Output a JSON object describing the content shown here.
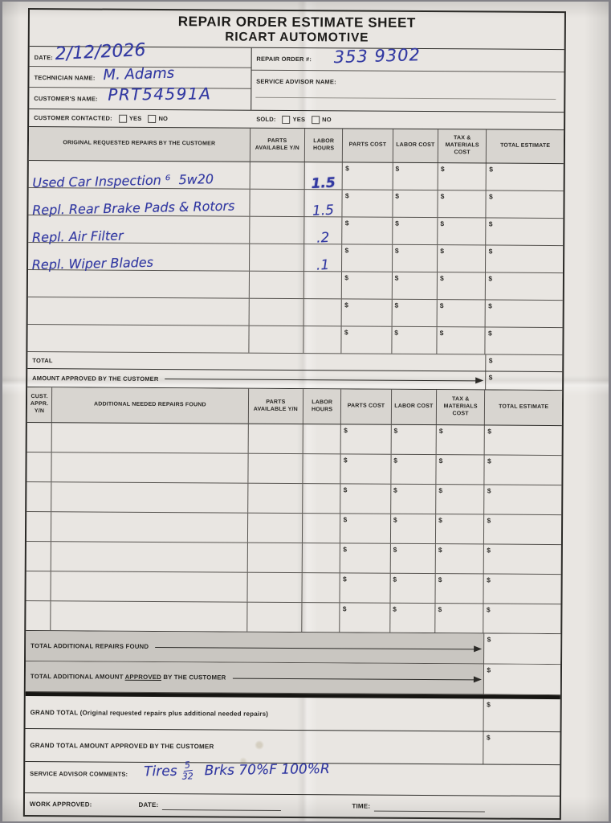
{
  "dollar": "$",
  "title": {
    "line1": "REPAIR ORDER ESTIMATE SHEET",
    "line2": "RICART AUTOMOTIVE"
  },
  "header": {
    "date_label": "DATE:",
    "date_value": "2/12/2026",
    "repair_order_label": "REPAIR ORDER #:",
    "repair_order_value": "353 9302",
    "technician_label": "TECHNICIAN NAME:",
    "technician_value": "M. Adams",
    "service_advisor_label": "SERVICE ADVISOR NAME:",
    "customer_label": "CUSTOMER'S NAME:",
    "customer_value": "PRT54591A",
    "contacted_label": "CUSTOMER CONTACTED:",
    "sold_label": "SOLD:",
    "yes_label": "YES",
    "no_label": "NO"
  },
  "original_table": {
    "headers": [
      "ORIGINAL REQUESTED REPAIRS BY THE CUSTOMER",
      "PARTS AVAILABLE Y/N",
      "LABOR HOURS",
      "PARTS COST",
      "LABOR COST",
      "TAX & MATERIALS COST",
      "TOTAL ESTIMATE"
    ],
    "rows": [
      {
        "description": "Used Car Inspection ⁶  5w20",
        "labor_hours": "1.5"
      },
      {
        "description": "Repl. Rear Brake Pads & Rotors",
        "labor_hours": "1.5"
      },
      {
        "description": "Repl. Air Filter",
        "labor_hours": ".2"
      },
      {
        "description": "Repl. Wiper Blades",
        "labor_hours": ".1"
      },
      {
        "description": "",
        "labor_hours": ""
      },
      {
        "description": "",
        "labor_hours": ""
      },
      {
        "description": "",
        "labor_hours": ""
      }
    ],
    "total_label": "TOTAL",
    "approved_label": "AMOUNT APPROVED BY THE CUSTOMER"
  },
  "additional_table": {
    "headers": [
      "CUST. APPR. Y/N",
      "ADDITIONAL NEEDED REPAIRS FOUND",
      "PARTS AVAILABLE Y/N",
      "LABOR HOURS",
      "PARTS COST",
      "LABOR COST",
      "TAX & MATERIALS COST",
      "TOTAL ESTIMATE"
    ],
    "found_label": "TOTAL ADDITIONAL REPAIRS FOUND",
    "approved_pre": "TOTAL ADDITIONAL AMOUNT ",
    "approved_underlined": "APPROVED",
    "approved_post": " BY THE CUSTOMER"
  },
  "grand": {
    "total_label": "GRAND TOTAL (Original requested repairs plus additional needed repairs)",
    "approved_label": "GRAND TOTAL AMOUNT APPROVED BY THE CUSTOMER"
  },
  "comments": {
    "label": "SERVICE ADVISOR COMMENTS:",
    "text_start": "Tires",
    "fraction_numerator": "5",
    "fraction_denominator": "32",
    "text_end": "Brks 70%F 100%R"
  },
  "footer": {
    "work_approved_label": "WORK APPROVED:",
    "date_label": "DATE:",
    "time_label": "TIME:"
  },
  "colors": {
    "ink": "#3239a2",
    "print": "#262522",
    "paper": "#e9e6e2"
  }
}
